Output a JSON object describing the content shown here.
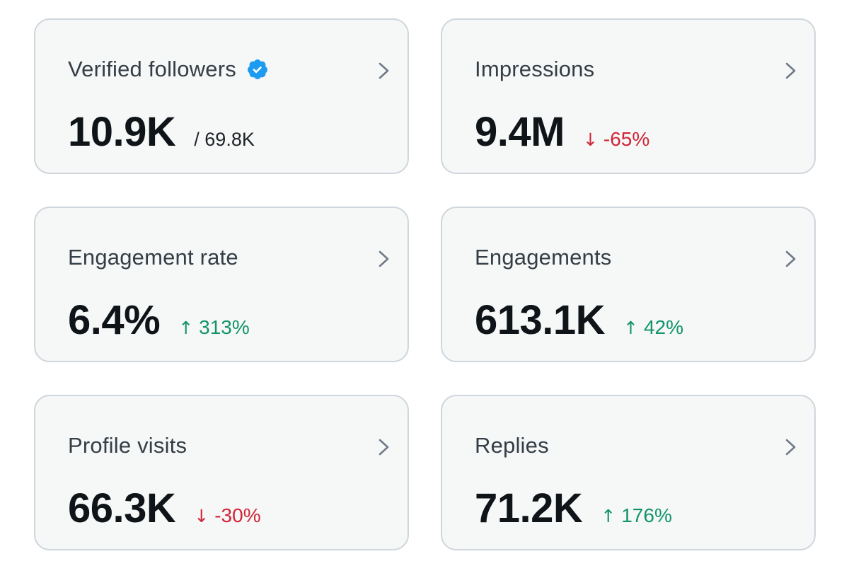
{
  "colors": {
    "card_background": "#f6f7f7",
    "card_border": "#cfd6dc",
    "title_text": "#353e46",
    "value_text": "#0f1419",
    "negative": "#d02537",
    "positive": "#11946a",
    "verified_badge": "#1d9bf0",
    "chevron": "#6f7b86"
  },
  "cards": [
    {
      "title": "Verified followers",
      "value": "10.9K",
      "secondary": "/ 69.8K",
      "verified_icon": "verified-badge-icon",
      "chevron_icon": "chevron-right-icon"
    },
    {
      "title": "Impressions",
      "value": "9.4M",
      "change": {
        "direction": "down",
        "arrow": "↓",
        "text": "-65%"
      },
      "chevron_icon": "chevron-right-icon"
    },
    {
      "title": "Engagement rate",
      "value": "6.4%",
      "change": {
        "direction": "up",
        "arrow": "↑",
        "text": "313%"
      },
      "chevron_icon": "chevron-right-icon"
    },
    {
      "title": "Engagements",
      "value": "613.1K",
      "change": {
        "direction": "up",
        "arrow": "↑",
        "text": "42%"
      },
      "chevron_icon": "chevron-right-icon"
    },
    {
      "title": "Profile visits",
      "value": "66.3K",
      "change": {
        "direction": "down",
        "arrow": "↓",
        "text": "-30%"
      },
      "chevron_icon": "chevron-right-icon"
    },
    {
      "title": "Replies",
      "value": "71.2K",
      "change": {
        "direction": "up",
        "arrow": "↑",
        "text": "176%"
      },
      "chevron_icon": "chevron-right-icon"
    }
  ]
}
